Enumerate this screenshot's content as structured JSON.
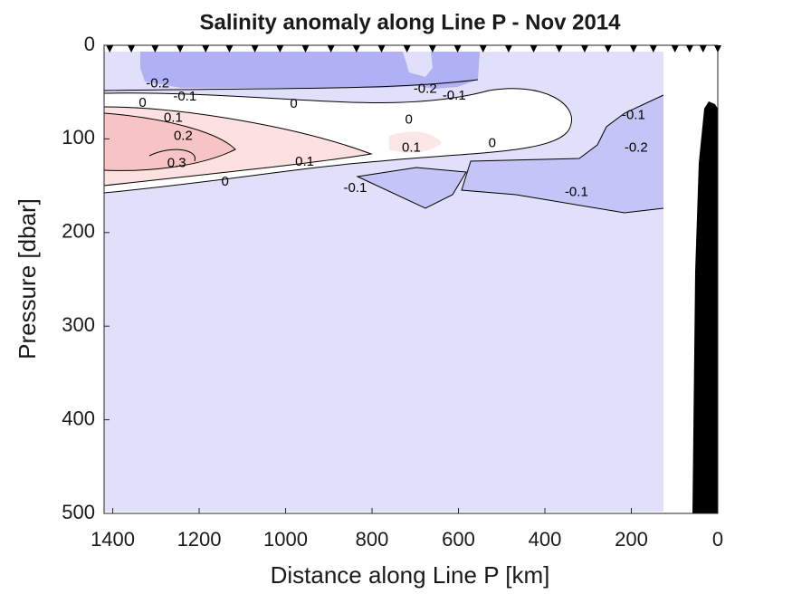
{
  "chart_data": {
    "type": "contour",
    "title": "Salinity anomaly along Line P - Nov 2014",
    "xlabel": "Distance along Line P [km]",
    "ylabel": "Pressure [dbar]",
    "xlim": [
      1420,
      0
    ],
    "ylim": [
      0,
      500
    ],
    "xticks": [
      1400,
      1200,
      1000,
      800,
      600,
      400,
      200,
      0
    ],
    "yticks": [
      0,
      100,
      200,
      300,
      400,
      500
    ],
    "stations": [
      1407,
      1357,
      1302,
      1244,
      1185,
      1130,
      1071,
      1013,
      954,
      895,
      836,
      778,
      719,
      660,
      602,
      543,
      484,
      426,
      367,
      308,
      254,
      195,
      149,
      99,
      65,
      34,
      0
    ],
    "contour_labels": [
      {
        "value": -0.2,
        "x": 1296,
        "y": 41
      },
      {
        "value": -0.1,
        "x": 1233,
        "y": 55
      },
      {
        "value": 0,
        "x": 1331,
        "y": 62
      },
      {
        "value": 0,
        "x": 981,
        "y": 63
      },
      {
        "value": 0.1,
        "x": 1260,
        "y": 78
      },
      {
        "value": 0.2,
        "x": 1237,
        "y": 97
      },
      {
        "value": 0.3,
        "x": 1252,
        "y": 126
      },
      {
        "value": 0.1,
        "x": 956,
        "y": 125
      },
      {
        "value": 0,
        "x": 1140,
        "y": 146
      },
      {
        "value": -0.1,
        "x": 839,
        "y": 153
      },
      {
        "value": -0.2,
        "x": 677,
        "y": 47
      },
      {
        "value": -0.1,
        "x": 610,
        "y": 54
      },
      {
        "value": 0,
        "x": 715,
        "y": 80
      },
      {
        "value": 0.1,
        "x": 709,
        "y": 110
      },
      {
        "value": 0,
        "x": 522,
        "y": 105
      },
      {
        "value": -0.1,
        "x": 195,
        "y": 75
      },
      {
        "value": -0.2,
        "x": 189,
        "y": 110
      },
      {
        "value": -0.1,
        "x": 327,
        "y": 157
      }
    ]
  }
}
